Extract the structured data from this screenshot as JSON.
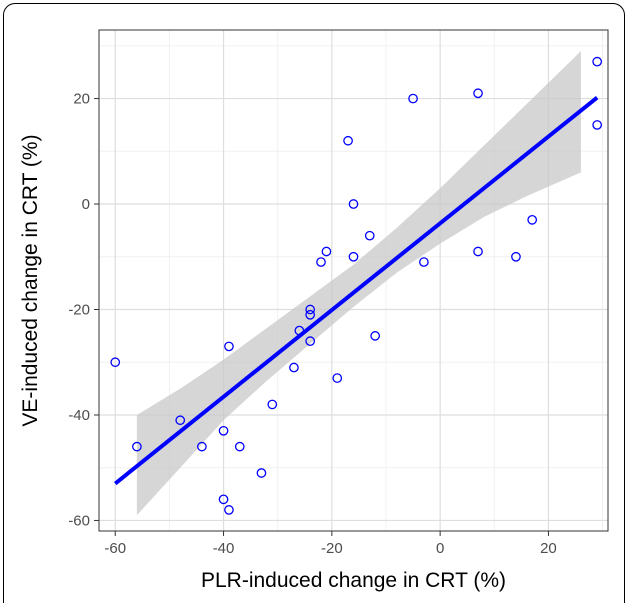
{
  "chart_data": {
    "type": "scatter",
    "title": "",
    "xlabel": "PLR-induced change in CRT (%)",
    "ylabel": "VE-induced change in CRT (%)",
    "xlim": [
      -63,
      31
    ],
    "ylim": [
      -62,
      33
    ],
    "x_ticks": [
      -60,
      -40,
      -20,
      0,
      20
    ],
    "y_ticks": [
      -60,
      -40,
      -20,
      0,
      20
    ],
    "x_tick_labels": [
      "-60",
      "-40",
      "-20",
      "0",
      "20"
    ],
    "y_tick_labels": [
      "-60",
      "-40",
      "-20",
      "0",
      "20"
    ],
    "grid": true,
    "points": {
      "x": [
        -60,
        -56,
        -48,
        -44,
        -40,
        -40,
        -39,
        -39,
        -37,
        -33,
        -31,
        -27,
        -26,
        -24,
        -24,
        -24,
        -22,
        -21,
        -19,
        -17,
        -16,
        -16,
        -13,
        -12,
        -5,
        -3,
        7,
        7,
        14,
        17,
        29,
        29
      ],
      "y": [
        -30,
        -46,
        -41,
        -46,
        -43,
        -56,
        -58,
        -27,
        -46,
        -51,
        -38,
        -31,
        -24,
        -26,
        -21,
        -20,
        -11,
        -9,
        -33,
        12,
        0,
        -10,
        -6,
        -25,
        20,
        -11,
        21,
        -9,
        -10,
        -3,
        27,
        15
      ],
      "color": "#0000ff"
    },
    "regression": {
      "x": [
        -60,
        29
      ],
      "y": [
        -53,
        20.2
      ],
      "color": "#0000ff"
    },
    "confidence_band": {
      "x": [
        -56,
        -48,
        -40,
        -32,
        -24,
        -16,
        -8,
        0,
        8,
        16,
        26
      ],
      "lower": [
        -59,
        -50,
        -41,
        -33.5,
        -26.5,
        -19.5,
        -13,
        -7.5,
        -2.5,
        1.5,
        6
      ],
      "upper": [
        -40,
        -35,
        -29.5,
        -23.5,
        -17.5,
        -11.5,
        -4.5,
        3,
        11,
        19,
        29
      ],
      "color": "#c8c8c8"
    }
  }
}
